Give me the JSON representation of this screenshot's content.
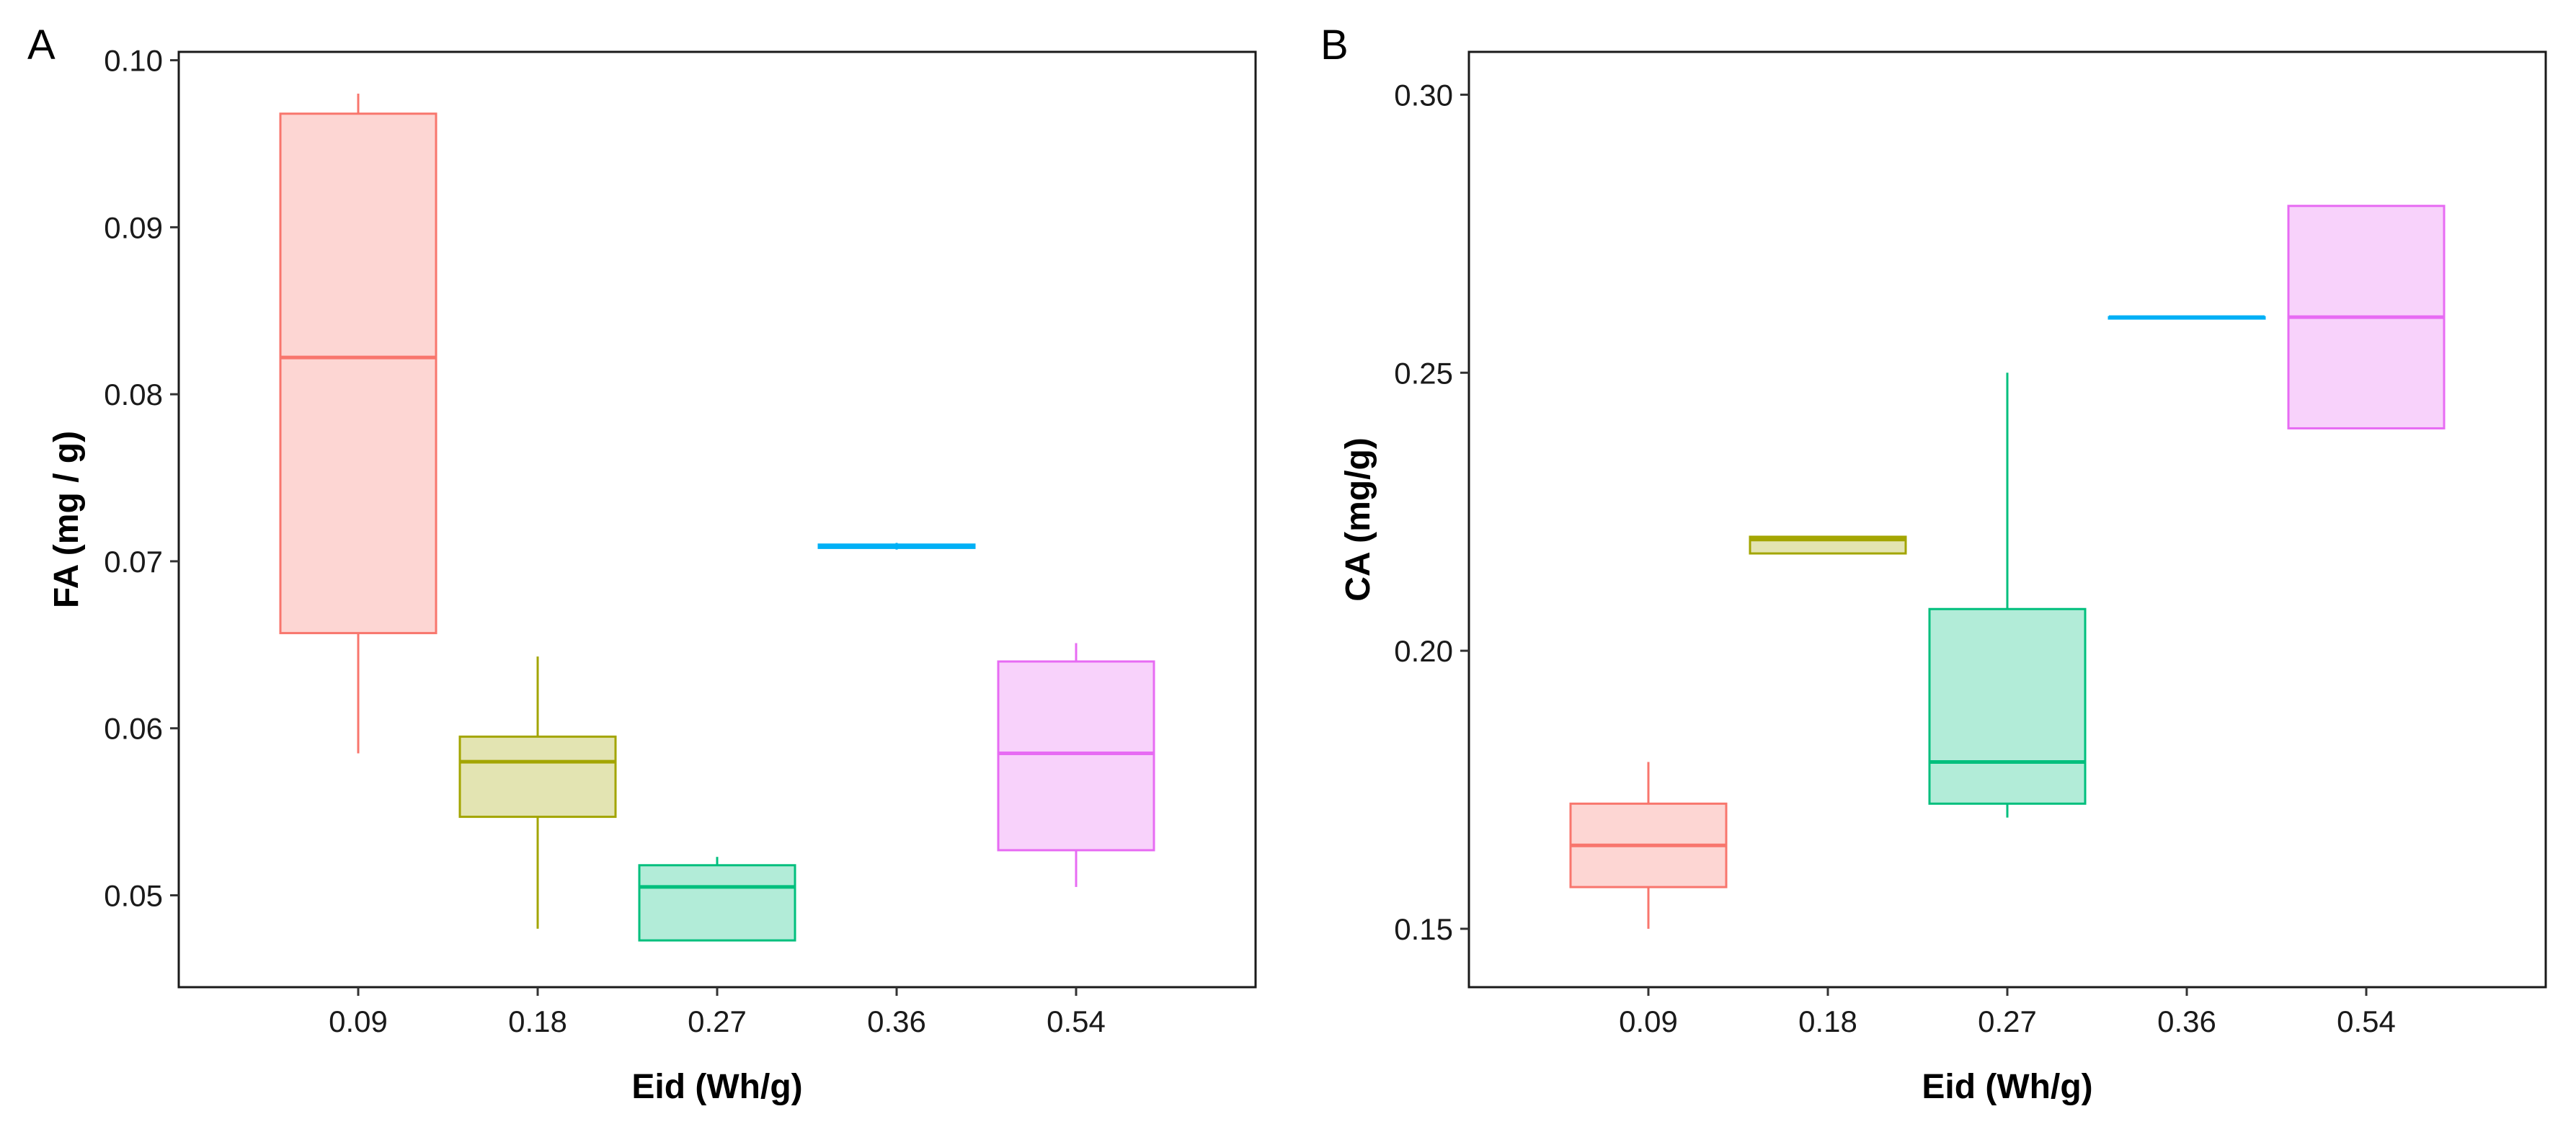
{
  "colors": {
    "0.09": {
      "fill": "#F8766D",
      "line": "#F8766D"
    },
    "0.18": {
      "fill": "#A3A500",
      "line": "#A3A500"
    },
    "0.27": {
      "fill": "#00BF7D",
      "line": "#00BF7D"
    },
    "0.36": {
      "fill": "#00B0F6",
      "line": "#00B0F6"
    },
    "0.54": {
      "fill": "#E76BF3",
      "line": "#E76BF3"
    }
  },
  "chart_data": [
    {
      "panel_label": "A",
      "type": "box",
      "xlabel": "Eid (Wh/g)",
      "ylabel": "FA (mg / g)",
      "ylim": [
        0.0445,
        0.1005
      ],
      "yticks": [
        0.05,
        0.06,
        0.07,
        0.08,
        0.09,
        0.1
      ],
      "ytick_labels": [
        "0.05",
        "0.06",
        "0.07",
        "0.08",
        "0.09",
        "0.10"
      ],
      "categories": [
        "0.09",
        "0.18",
        "0.27",
        "0.36",
        "0.54"
      ],
      "boxes": [
        {
          "category": "0.09",
          "min": 0.0585,
          "q1": 0.0657,
          "median": 0.0822,
          "q3": 0.0968,
          "max": 0.098
        },
        {
          "category": "0.18",
          "min": 0.048,
          "q1": 0.0547,
          "median": 0.058,
          "q3": 0.0595,
          "max": 0.0643
        },
        {
          "category": "0.27",
          "min": 0.0473,
          "q1": 0.0473,
          "median": 0.0505,
          "q3": 0.0518,
          "max": 0.0523
        },
        {
          "category": "0.36",
          "min": 0.0707,
          "q1": 0.0708,
          "median": 0.0709,
          "q3": 0.071,
          "max": 0.0711
        },
        {
          "category": "0.54",
          "min": 0.0505,
          "q1": 0.0527,
          "median": 0.0585,
          "q3": 0.064,
          "max": 0.0651
        }
      ]
    },
    {
      "panel_label": "B",
      "type": "box",
      "xlabel": "Eid (Wh/g)",
      "ylabel": "CA (mg/g)",
      "ylim": [
        0.1395,
        0.3077
      ],
      "yticks": [
        0.15,
        0.2,
        0.25,
        0.3
      ],
      "ytick_labels": [
        "0.15",
        "0.20",
        "0.25",
        "0.30"
      ],
      "categories": [
        "0.09",
        "0.18",
        "0.27",
        "0.36",
        "0.54"
      ],
      "boxes": [
        {
          "category": "0.09",
          "min": 0.15,
          "q1": 0.1575,
          "median": 0.165,
          "q3": 0.1725,
          "max": 0.18
        },
        {
          "category": "0.18",
          "min": 0.2175,
          "q1": 0.2175,
          "median": 0.22,
          "q3": 0.2205,
          "max": 0.2205
        },
        {
          "category": "0.27",
          "min": 0.17,
          "q1": 0.1725,
          "median": 0.18,
          "q3": 0.2075,
          "max": 0.25
        },
        {
          "category": "0.36",
          "min": 0.26,
          "q1": 0.26,
          "median": 0.26,
          "q3": 0.26,
          "max": 0.26
        },
        {
          "category": "0.54",
          "min": 0.24,
          "q1": 0.24,
          "median": 0.26,
          "q3": 0.28,
          "max": 0.28
        }
      ]
    }
  ]
}
